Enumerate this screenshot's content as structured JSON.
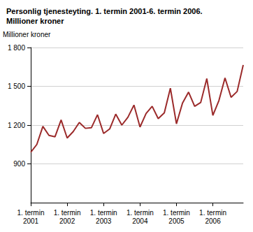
{
  "chart_data": {
    "type": "line",
    "title": "Personlig tjenesteyting. 1. termin 2001-6. termin 2006.\nMillioner kroner",
    "y_label": "Millioner kroner",
    "categories": [
      "1. termin\n2001",
      null,
      null,
      null,
      null,
      null,
      "1. termin\n2002",
      null,
      null,
      null,
      null,
      null,
      "1. termin\n2003",
      null,
      null,
      null,
      null,
      null,
      "1. termin\n2004",
      null,
      null,
      null,
      null,
      null,
      "1. termin\n2005",
      null,
      null,
      null,
      null,
      null,
      "1. termin\n2006",
      null,
      null,
      null,
      null,
      null
    ],
    "values": [
      990,
      1050,
      1190,
      1120,
      1110,
      1240,
      1100,
      1150,
      1220,
      1175,
      1180,
      1280,
      1135,
      1170,
      1285,
      1200,
      1260,
      1355,
      1185,
      1290,
      1345,
      1250,
      1295,
      1485,
      1210,
      1370,
      1455,
      1345,
      1375,
      1560,
      1275,
      1390,
      1565,
      1415,
      1460,
      1665
    ],
    "color": "#9b2a2a",
    "ylim": [
      600,
      1800
    ],
    "yticks": [
      900,
      {
        "value": 1200,
        "label": "1 200"
      },
      {
        "value": 1500,
        "label": "1 500"
      },
      {
        "value": 1800,
        "label": "1 800"
      }
    ],
    "grid": true
  }
}
